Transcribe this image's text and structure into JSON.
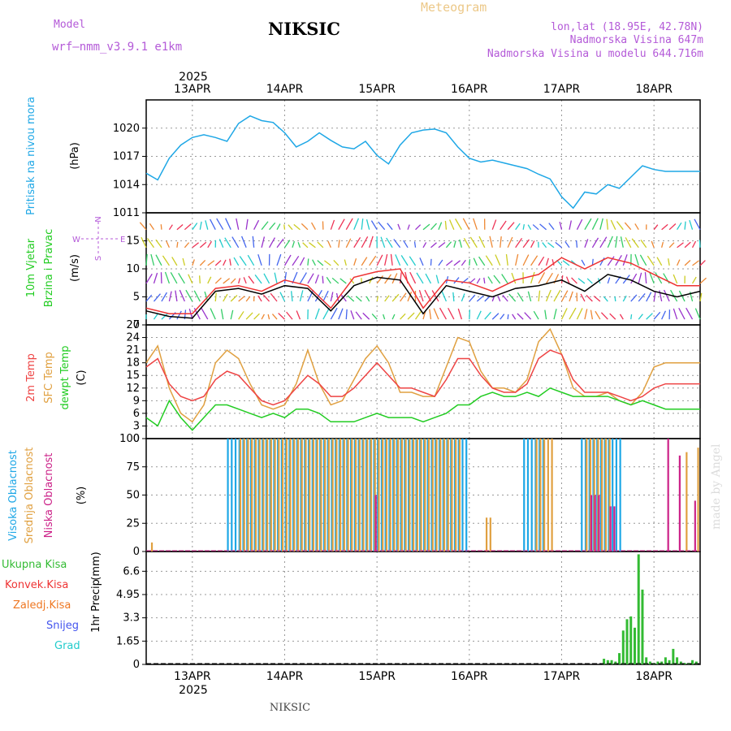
{
  "header": {
    "model_label": "Model",
    "model_name": "wrf—nmm_v3.9.1 e1km",
    "title": "NIKSIC",
    "subtitle": "Meteogram",
    "coords": "lon,lat (18.95E, 42.78N)",
    "elevation": "Nadmorska Visina 647m",
    "model_elevation": "Nadmorska Visina u modelu 644.716m",
    "year": "2025",
    "footer": "NIKSIC",
    "credit": "made by Angel"
  },
  "colors": {
    "pressure": "#1ea7e6",
    "temp2m": "#ee4444",
    "sfc": "#e0a040",
    "dewpt": "#22cc22",
    "high": "#1ea7e6",
    "mid": "#e0a040",
    "low": "#cc2288",
    "total": "#33bb33",
    "wind_speed": "#000000",
    "gust": "#ee3333"
  },
  "chart_data": [
    {
      "type": "line",
      "panel": "pressure",
      "ylabel": "Pritisak na nivou mora",
      "unit": "(hPa)",
      "ylim": [
        1011,
        1023
      ],
      "yticks": [
        "1011",
        "1014",
        "1017",
        "1020"
      ],
      "x_hours": [
        0,
        3,
        6,
        9,
        12,
        15,
        18,
        21,
        24,
        27,
        30,
        33,
        36,
        39,
        42,
        45,
        48,
        51,
        54,
        57,
        60,
        63,
        66,
        69,
        72,
        75,
        78,
        81,
        84,
        87,
        90,
        93,
        96,
        99,
        102,
        105,
        108,
        111,
        114,
        117,
        120,
        123,
        126,
        129,
        132,
        135,
        138,
        141,
        144
      ],
      "series": [
        {
          "values": [
            1015.2,
            1014.5,
            1016.8,
            1018.2,
            1019.0,
            1019.3,
            1019.0,
            1018.6,
            1020.5,
            1021.3,
            1020.8,
            1020.6,
            1019.5,
            1018.0,
            1018.6,
            1019.5,
            1018.7,
            1018.0,
            1017.8,
            1018.6,
            1017.1,
            1016.2,
            1018.2,
            1019.5,
            1019.8,
            1019.9,
            1019.5,
            1018.0,
            1016.8,
            1016.4,
            1016.6,
            1016.3,
            1016.0,
            1015.7,
            1015.1,
            1014.6,
            1012.7,
            1011.5,
            1013.2,
            1013.0,
            1014.0,
            1013.6,
            1014.8,
            1016.0,
            1015.6,
            1015.4,
            1015.4,
            1015.4,
            1015.4
          ]
        }
      ]
    },
    {
      "type": "line",
      "panel": "wind",
      "ylabel": "10m Vjetar",
      "ylabel2": "Brzina i Pravac",
      "unit": "(m/s)",
      "compass": {
        "n": "N",
        "s": "S",
        "w": "W",
        "e": "E"
      },
      "ylim": [
        0,
        20
      ],
      "yticks": [
        "0",
        "5",
        "10",
        "15"
      ],
      "x_hours": [
        0,
        6,
        12,
        18,
        24,
        30,
        36,
        42,
        48,
        54,
        60,
        66,
        72,
        78,
        84,
        90,
        96,
        102,
        108,
        114,
        120,
        126,
        132,
        138,
        144
      ],
      "series": [
        {
          "values": [
            2.5,
            1.5,
            1.2,
            6,
            6.5,
            5.5,
            7,
            6.5,
            2.5,
            7,
            8.5,
            8,
            2,
            7,
            6,
            5,
            6.5,
            7,
            8,
            6,
            9,
            8,
            6,
            5,
            6
          ]
        },
        {
          "values": [
            3,
            2,
            2,
            6.5,
            7,
            6,
            8,
            7,
            3,
            8.5,
            9.5,
            10,
            3,
            8,
            7.5,
            6,
            8,
            9,
            12,
            10,
            12,
            11,
            9,
            7,
            7
          ]
        }
      ]
    },
    {
      "type": "line",
      "panel": "temperature",
      "ylabel": "2m Temp",
      "ylabel2": "SFC Temp",
      "ylabel3": "dewpt Temp",
      "unit": "(C)",
      "ylim": [
        0,
        27
      ],
      "yticks": [
        "0",
        "3",
        "6",
        "9",
        "12",
        "15",
        "18",
        "21",
        "24",
        "27"
      ],
      "x_hours": [
        0,
        3,
        6,
        9,
        12,
        15,
        18,
        21,
        24,
        27,
        30,
        33,
        36,
        39,
        42,
        45,
        48,
        51,
        54,
        57,
        60,
        63,
        66,
        69,
        72,
        75,
        78,
        81,
        84,
        87,
        90,
        93,
        96,
        99,
        102,
        105,
        108,
        111,
        114,
        117,
        120,
        123,
        126,
        129,
        132,
        135,
        138,
        141,
        144
      ],
      "series": [
        {
          "values": [
            17,
            19,
            13,
            10,
            9,
            10,
            14,
            16,
            15,
            12,
            9,
            8,
            9,
            12,
            15,
            13,
            10,
            10,
            12,
            15,
            18,
            15,
            12,
            12,
            11,
            10,
            14,
            19,
            19,
            15,
            12,
            11,
            11,
            13,
            19,
            21,
            20,
            14,
            11,
            11,
            11,
            10,
            9,
            10,
            12,
            13,
            13,
            13,
            13
          ]
        },
        {
          "values": [
            18,
            22,
            12,
            6,
            4,
            8,
            18,
            21,
            19,
            13,
            8,
            7,
            8,
            13,
            21,
            13,
            8,
            9,
            14,
            19,
            22,
            18,
            11,
            11,
            10,
            10,
            17,
            24,
            23,
            16,
            12,
            12,
            11,
            14,
            23,
            26,
            20,
            12,
            10,
            10,
            11,
            9,
            8,
            11,
            17,
            18,
            18,
            18,
            18
          ]
        },
        {
          "values": [
            5,
            3,
            9,
            5,
            2,
            5,
            8,
            8,
            7,
            6,
            5,
            6,
            5,
            7,
            7,
            6,
            4,
            4,
            4,
            5,
            6,
            5,
            5,
            5,
            4,
            5,
            6,
            8,
            8,
            10,
            11,
            10,
            10,
            11,
            10,
            12,
            11,
            10,
            10,
            10,
            10,
            9,
            8,
            9,
            8,
            7,
            7,
            7,
            7
          ]
        }
      ]
    },
    {
      "type": "bar",
      "panel": "clouds",
      "ylabel": "Visoka Oblacnost",
      "ylabel2": "Srednja Oblacnost",
      "ylabel3": "Niska Oblacnost",
      "unit": "(%)",
      "ylim": [
        0,
        100
      ],
      "yticks": [
        "0",
        "25",
        "50",
        "75",
        "100"
      ],
      "high": [
        [
          21,
          55,
          100
        ],
        [
          60,
          24,
          100
        ],
        [
          98,
          6,
          100
        ],
        [
          113,
          11,
          100
        ]
      ],
      "mid": [
        [
          1,
          1,
          8
        ],
        [
          24,
          58,
          100
        ],
        [
          88,
          2,
          30
        ],
        [
          101,
          5,
          100
        ],
        [
          114,
          7,
          100
        ],
        [
          140,
          1,
          88
        ],
        [
          143,
          1,
          92
        ]
      ],
      "low": [
        [
          59,
          1,
          50
        ],
        [
          115,
          3,
          50
        ],
        [
          120,
          2,
          40
        ],
        [
          135,
          1,
          100
        ],
        [
          138,
          1,
          85
        ],
        [
          142,
          1,
          45
        ]
      ]
    },
    {
      "type": "bar",
      "panel": "precip",
      "ylabel": "1hr Precip",
      "unit": "(mm)",
      "legend": [
        "Ukupna Kisa",
        "Konvek.Kisa",
        "Zaledj.Kisa",
        "Snijeg",
        "Grad"
      ],
      "ylim": [
        0,
        8
      ],
      "yticks": [
        "0",
        "1.65",
        "3.3",
        "4.95",
        "6.6"
      ],
      "x_hours": [
        119,
        120,
        121,
        122,
        123,
        124,
        125,
        126,
        127,
        128,
        129,
        130,
        131,
        132,
        133,
        134,
        135,
        136,
        137,
        138,
        139,
        140,
        141,
        142,
        143
      ],
      "values": [
        0.4,
        0.3,
        0.3,
        0.2,
        0.8,
        2.4,
        3.2,
        3.4,
        2.6,
        7.8,
        5.3,
        0.5,
        0.2,
        0.1,
        0.2,
        0.2,
        0.5,
        0.3,
        1.1,
        0.5,
        0.2,
        0.1,
        0.1,
        0.3,
        0.2
      ]
    }
  ],
  "time_axis": {
    "day_labels": [
      "13APR",
      "14APR",
      "15APR",
      "16APR",
      "17APR",
      "18APR"
    ],
    "day_hours": [
      12,
      36,
      60,
      84,
      108,
      132
    ],
    "total_hours": 144
  }
}
